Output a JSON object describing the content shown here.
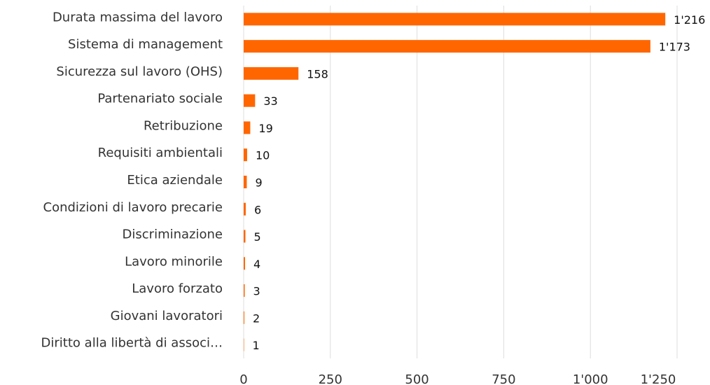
{
  "chart_data": {
    "type": "hbar",
    "categories": [
      "Durata massima del lavoro",
      "Sistema di management",
      "Sicurezza sul lavoro (OHS)",
      "Partenariato sociale",
      "Retribuzione",
      "Requisiti ambientali",
      "Etica aziendale",
      "Condizioni di lavoro precarie",
      "Discriminazione",
      "Lavoro minorile",
      "Lavoro forzato",
      "Giovani lavoratori",
      "Diritto alla libertà di associ…"
    ],
    "values": [
      1216,
      1173,
      158,
      33,
      19,
      10,
      9,
      6,
      5,
      4,
      3,
      2,
      1
    ],
    "value_labels": [
      "1'216",
      "1'173",
      "158",
      "33",
      "19",
      "10",
      "9",
      "6",
      "5",
      "4",
      "3",
      "2",
      "1"
    ],
    "color": "#ff6600",
    "xlim": [
      0,
      1250
    ],
    "xticks": [
      0,
      250,
      500,
      750,
      {
        "value": 1000,
        "label": "1'000"
      },
      {
        "value": 1250,
        "label": "1'250"
      }
    ],
    "grid": true
  }
}
